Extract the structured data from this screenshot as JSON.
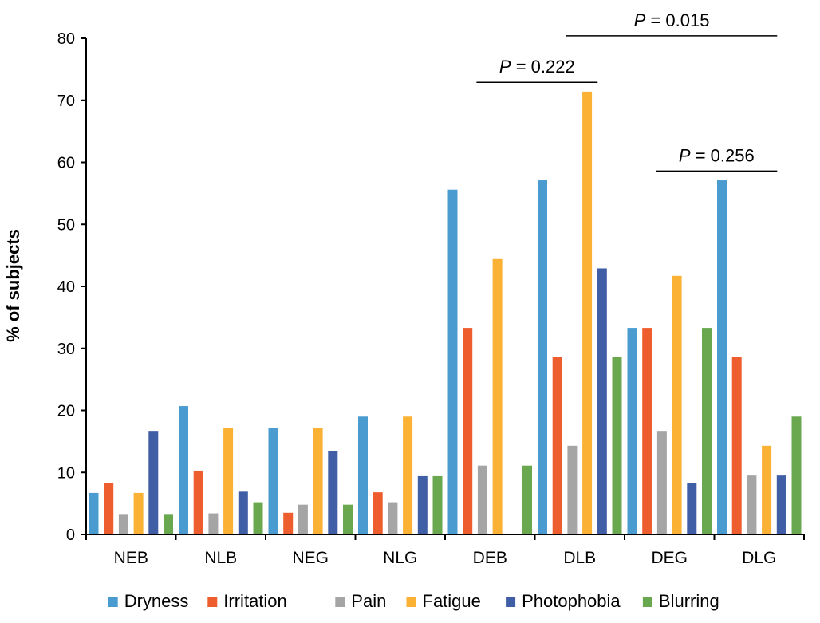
{
  "chart_data": {
    "type": "bar",
    "ylabel": "% of subjects",
    "ylim": [
      0,
      80
    ],
    "yticks": [
      0,
      10,
      20,
      30,
      40,
      50,
      60,
      70,
      80
    ],
    "categories": [
      "NEB",
      "NLB",
      "NEG",
      "NLG",
      "DEB",
      "DLB",
      "DEG",
      "DLG"
    ],
    "series": [
      {
        "name": "Dryness",
        "color": "#4a9bd0",
        "values": [
          6.7,
          20.7,
          17.2,
          19.0,
          55.6,
          57.1,
          33.3,
          57.1
        ]
      },
      {
        "name": "Irritation",
        "color": "#ee5d2e",
        "values": [
          8.3,
          10.3,
          3.5,
          6.8,
          33.3,
          28.6,
          33.3,
          28.6
        ]
      },
      {
        "name": "Pain",
        "color": "#a5a5a5",
        "values": [
          3.3,
          3.4,
          4.8,
          5.2,
          11.1,
          14.3,
          16.7,
          9.5
        ]
      },
      {
        "name": "Fatigue",
        "color": "#fbb134",
        "values": [
          6.7,
          17.2,
          17.2,
          19.0,
          44.4,
          71.4,
          41.7,
          14.3
        ]
      },
      {
        "name": "Photophobia",
        "color": "#3f5ea6",
        "values": [
          16.7,
          6.9,
          13.5,
          9.4,
          0,
          42.9,
          8.3,
          9.5
        ]
      },
      {
        "name": "Blurring",
        "color": "#6aa84f",
        "values": [
          3.3,
          5.2,
          4.8,
          9.4,
          11.1,
          28.6,
          33.3,
          19.0
        ]
      }
    ],
    "annotations": [
      {
        "from": "DEB",
        "to": "DLB",
        "value": "= 0.222"
      },
      {
        "from": "DLB",
        "to": "DLG",
        "value": "= 0.015"
      },
      {
        "from": "DEG",
        "to": "DLG",
        "value": "= 0.256"
      }
    ],
    "annotation_prefix": "P",
    "legend_position": "bottom"
  }
}
